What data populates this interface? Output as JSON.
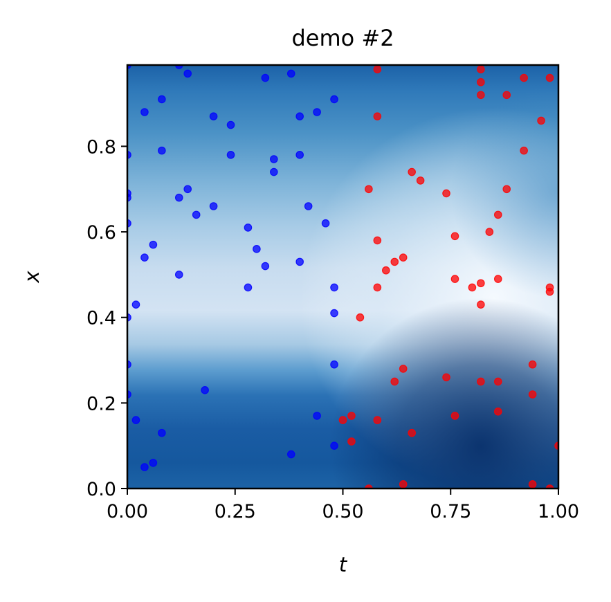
{
  "chart_data": {
    "type": "scatter",
    "title": "demo #2",
    "xlabel": "t",
    "ylabel": "x",
    "xlim": [
      0,
      1
    ],
    "ylim": [
      0,
      0.99
    ],
    "grid": false,
    "legend": "none",
    "xticks": [
      "0.00",
      "0.25",
      "0.50",
      "0.75",
      "1.00"
    ],
    "yticks": [
      "0.0",
      "0.2",
      "0.4",
      "0.6",
      "0.8"
    ],
    "background": "heatmap",
    "series": [
      {
        "color": "#0000ff",
        "points": [
          [
            0.0,
            0.99
          ],
          [
            0.12,
            0.99
          ],
          [
            0.14,
            0.97
          ],
          [
            0.38,
            0.97
          ],
          [
            0.32,
            0.96
          ],
          [
            0.08,
            0.91
          ],
          [
            0.48,
            0.91
          ],
          [
            0.04,
            0.88
          ],
          [
            0.44,
            0.88
          ],
          [
            0.2,
            0.87
          ],
          [
            0.4,
            0.87
          ],
          [
            0.24,
            0.85
          ],
          [
            0.08,
            0.79
          ],
          [
            0.0,
            0.78
          ],
          [
            0.24,
            0.78
          ],
          [
            0.4,
            0.78
          ],
          [
            0.34,
            0.77
          ],
          [
            0.34,
            0.74
          ],
          [
            0.14,
            0.7
          ],
          [
            0.0,
            0.69
          ],
          [
            0.0,
            0.68
          ],
          [
            0.12,
            0.68
          ],
          [
            0.2,
            0.66
          ],
          [
            0.42,
            0.66
          ],
          [
            0.16,
            0.64
          ],
          [
            0.0,
            0.62
          ],
          [
            0.46,
            0.62
          ],
          [
            0.28,
            0.61
          ],
          [
            0.06,
            0.57
          ],
          [
            0.3,
            0.56
          ],
          [
            0.04,
            0.54
          ],
          [
            0.4,
            0.53
          ],
          [
            0.32,
            0.52
          ],
          [
            0.12,
            0.5
          ],
          [
            0.28,
            0.47
          ],
          [
            0.48,
            0.47
          ],
          [
            0.02,
            0.43
          ],
          [
            0.48,
            0.41
          ],
          [
            0.0,
            0.4
          ],
          [
            0.0,
            0.29
          ],
          [
            0.48,
            0.29
          ],
          [
            0.18,
            0.23
          ],
          [
            0.0,
            0.22
          ],
          [
            0.44,
            0.17
          ],
          [
            0.02,
            0.16
          ],
          [
            0.08,
            0.13
          ],
          [
            0.48,
            0.1
          ],
          [
            0.38,
            0.08
          ],
          [
            0.06,
            0.06
          ],
          [
            0.04,
            0.05
          ]
        ]
      },
      {
        "color": "#ff0000",
        "points": [
          [
            0.58,
            0.98
          ],
          [
            0.82,
            0.98
          ],
          [
            0.92,
            0.96
          ],
          [
            0.98,
            0.96
          ],
          [
            0.82,
            0.95
          ],
          [
            0.82,
            0.92
          ],
          [
            0.88,
            0.92
          ],
          [
            0.58,
            0.87
          ],
          [
            0.96,
            0.86
          ],
          [
            0.92,
            0.79
          ],
          [
            0.66,
            0.74
          ],
          [
            0.68,
            0.72
          ],
          [
            0.56,
            0.7
          ],
          [
            0.88,
            0.7
          ],
          [
            0.74,
            0.69
          ],
          [
            0.86,
            0.64
          ],
          [
            0.84,
            0.6
          ],
          [
            0.76,
            0.59
          ],
          [
            0.58,
            0.58
          ],
          [
            0.64,
            0.54
          ],
          [
            0.62,
            0.53
          ],
          [
            0.6,
            0.51
          ],
          [
            0.76,
            0.49
          ],
          [
            0.86,
            0.49
          ],
          [
            0.82,
            0.48
          ],
          [
            0.58,
            0.47
          ],
          [
            0.8,
            0.47
          ],
          [
            0.98,
            0.47
          ],
          [
            0.98,
            0.46
          ],
          [
            0.82,
            0.43
          ],
          [
            0.54,
            0.4
          ],
          [
            0.64,
            0.28
          ],
          [
            0.94,
            0.29
          ],
          [
            0.74,
            0.26
          ],
          [
            0.62,
            0.25
          ],
          [
            0.82,
            0.25
          ],
          [
            0.86,
            0.25
          ],
          [
            0.94,
            0.22
          ],
          [
            0.86,
            0.18
          ],
          [
            0.76,
            0.17
          ],
          [
            0.52,
            0.17
          ],
          [
            0.5,
            0.16
          ],
          [
            0.58,
            0.16
          ],
          [
            0.66,
            0.13
          ],
          [
            0.52,
            0.11
          ],
          [
            1.0,
            0.1
          ],
          [
            0.64,
            0.01
          ],
          [
            0.94,
            0.01
          ],
          [
            0.56,
            0.0
          ],
          [
            0.98,
            0.0
          ]
        ]
      }
    ]
  }
}
